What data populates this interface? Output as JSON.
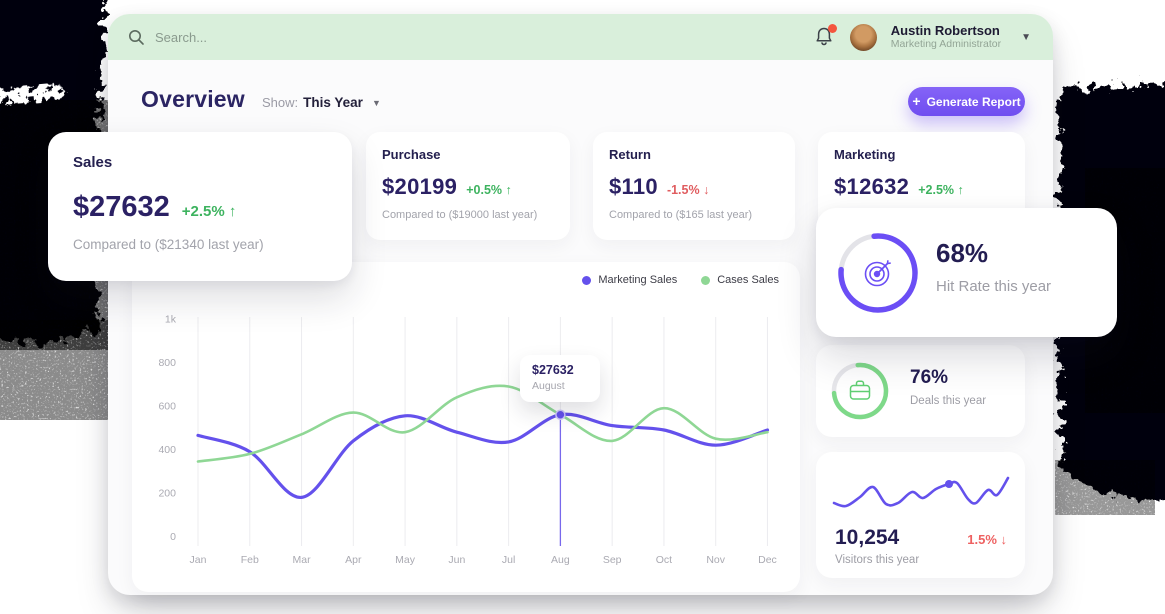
{
  "topbar": {
    "search_placeholder": "Search...",
    "user": {
      "name": "Austin Robertson",
      "role": "Marketing Administrator"
    }
  },
  "header": {
    "title": "Overview",
    "show_label": "Show:",
    "show_value": "This Year",
    "generate_plus": "+",
    "generate_label": "Generate Report"
  },
  "sales_card": {
    "title": "Sales",
    "value": "$27632",
    "delta": "+2.5% ↑",
    "compare": "Compared to ($21340 last year)"
  },
  "stat_cards": [
    {
      "title": "Purchase",
      "value": "$20199",
      "delta": "+0.5% ↑",
      "dir": "up",
      "compare": "Compared to ($19000 last year)"
    },
    {
      "title": "Return",
      "value": "$110",
      "delta": "-1.5% ↓",
      "dir": "down",
      "compare": "Compared to ($165 last year)"
    },
    {
      "title": "Marketing",
      "value": "$12632",
      "delta": "+2.5% ↑",
      "dir": "up",
      "compare": ""
    }
  ],
  "hit_rate": {
    "value": "68%",
    "label": "Hit Rate this year",
    "percent": 68,
    "ring_color": "#6b4ef5"
  },
  "deals": {
    "value": "76%",
    "label": "Deals this year",
    "percent": 76,
    "ring_color": "#7ed989"
  },
  "visitors": {
    "value": "10,254",
    "label": "Visitors this year",
    "delta": "1.5% ↓",
    "dir": "down",
    "spark_points": [
      [
        18,
        51
      ],
      [
        30,
        54
      ],
      [
        44,
        45
      ],
      [
        57,
        35
      ],
      [
        70,
        52
      ],
      [
        82,
        51
      ],
      [
        96,
        40
      ],
      [
        107,
        46
      ],
      [
        120,
        37
      ],
      [
        133,
        32
      ],
      [
        141,
        31
      ],
      [
        152,
        47
      ],
      [
        160,
        51
      ],
      [
        172,
        38
      ],
      [
        181,
        43
      ],
      [
        192,
        26
      ]
    ],
    "spark_dot_index": 9,
    "spark_color": "#6451ec"
  },
  "chart_data": {
    "type": "line",
    "x": [
      "Jan",
      "Feb",
      "Mar",
      "Apr",
      "May",
      "Jun",
      "Jul",
      "Aug",
      "Sep",
      "Oct",
      "Nov",
      "Dec"
    ],
    "series": [
      {
        "name": "Marketing Sales",
        "color": "#6451ec",
        "values": [
          465,
          390,
          180,
          440,
          555,
          480,
          435,
          560,
          510,
          490,
          420,
          490
        ]
      },
      {
        "name": "Cases Sales",
        "color": "#8fd795",
        "values": [
          345,
          380,
          470,
          570,
          480,
          640,
          690,
          560,
          440,
          590,
          450,
          480
        ]
      }
    ],
    "ylim": [
      0,
      1000
    ],
    "yticks": [
      [
        "0",
        0
      ],
      [
        "200",
        200
      ],
      [
        "400",
        400
      ],
      [
        "600",
        600
      ],
      [
        "800",
        800
      ],
      [
        "1k",
        1000
      ]
    ],
    "grid": "vertical",
    "legend_position": "top-right",
    "tooltip": {
      "value": "$27632",
      "label": "August",
      "month": "Aug"
    }
  },
  "colors": {
    "topbar_green": "#d9efdb",
    "accent_purple": "#6f4df0",
    "chart_purple": "#6451ec",
    "chart_green": "#8fd795",
    "delta_green": "#3db35f",
    "delta_red": "#e05c5f",
    "navy": "#2b2164"
  }
}
